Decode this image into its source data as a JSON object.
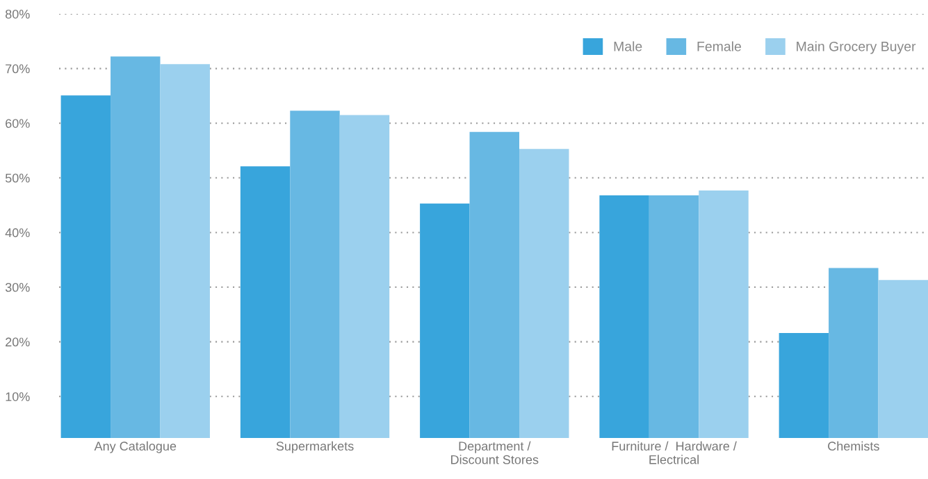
{
  "chart_data": {
    "type": "bar",
    "categories": [
      "Any Catalogue",
      "Supermarkets",
      "Department /\nDiscount Stores",
      "Furniture /  Hardware /\nElectrical",
      "Chemists"
    ],
    "series": [
      {
        "name": "Male",
        "color": "#38a5dc",
        "values": [
          65.1,
          52.1,
          45.3,
          46.8,
          21.6
        ]
      },
      {
        "name": "Female",
        "color": "#67b8e3",
        "values": [
          72.2,
          62.3,
          58.4,
          46.8,
          33.5
        ]
      },
      {
        "name": "Main Grocery Buyer",
        "color": "#9bd0ee",
        "values": [
          70.8,
          61.5,
          55.3,
          47.7,
          31.3
        ]
      }
    ],
    "ylim": [
      2.4,
      80
    ],
    "yticks": [
      {
        "value": 10,
        "label": "10%"
      },
      {
        "value": 20,
        "label": "20%"
      },
      {
        "value": 30,
        "label": "30%"
      },
      {
        "value": 40,
        "label": "40%"
      },
      {
        "value": 50,
        "label": "50%"
      },
      {
        "value": 60,
        "label": "60%"
      },
      {
        "value": 70,
        "label": "70%"
      },
      {
        "value": 80,
        "label": "80%"
      }
    ],
    "grid": "y",
    "legend": "top right"
  }
}
